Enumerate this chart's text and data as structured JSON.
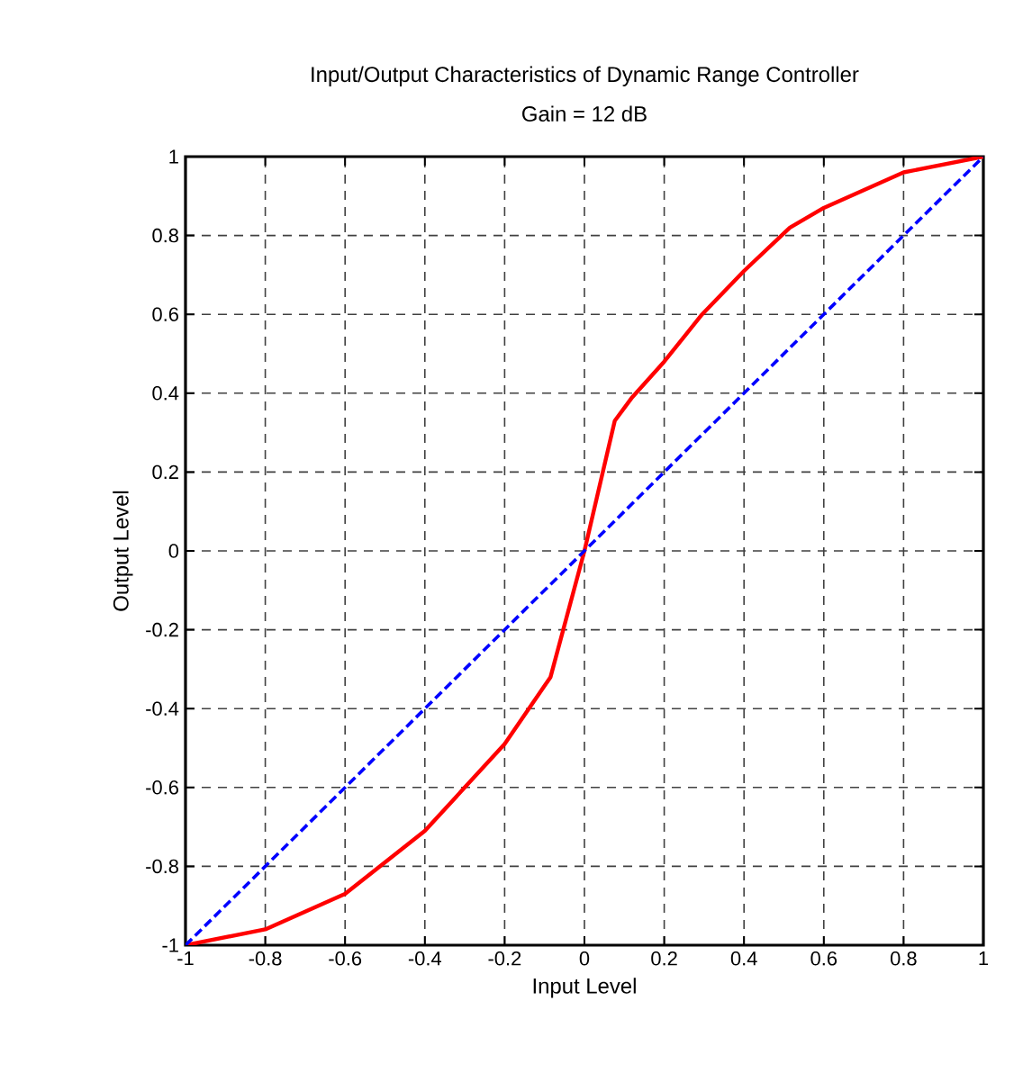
{
  "chart_data": {
    "type": "line",
    "title": "Input/Output Characteristics of Dynamic Range Controller",
    "subtitle": "Gain = 12 dB",
    "xlabel": "Input Level",
    "ylabel": "Output Level",
    "xlim": [
      -1,
      1
    ],
    "ylim": [
      -1,
      1
    ],
    "xticks": [
      -1,
      -0.8,
      -0.6,
      -0.4,
      -0.2,
      0,
      0.2,
      0.4,
      0.6,
      0.8,
      1
    ],
    "yticks": [
      -1,
      -0.8,
      -0.6,
      -0.4,
      -0.2,
      0,
      0.2,
      0.4,
      0.6,
      0.8,
      1
    ],
    "grid": true,
    "marker": "none",
    "series": [
      {
        "color": "#ff0000",
        "line_style": "solid",
        "x": [
          -1,
          -0.8,
          -0.6,
          -0.4,
          -0.2,
          -0.085,
          0,
          0.076,
          0.12,
          0.2,
          0.295,
          0.4,
          0.515,
          0.6,
          0.8,
          1
        ],
        "values": [
          -1,
          -0.96,
          -0.87,
          -0.71,
          -0.49,
          -0.32,
          0,
          0.33,
          0.39,
          0.48,
          0.6,
          0.71,
          0.82,
          0.87,
          0.96,
          1
        ]
      },
      {
        "color": "#0000ff",
        "line_style": "dashed",
        "x": [
          -1,
          1
        ],
        "values": [
          -1,
          1
        ]
      }
    ]
  }
}
